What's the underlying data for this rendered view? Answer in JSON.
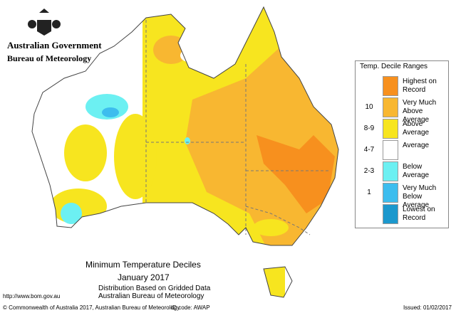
{
  "header": {
    "agency": "Australian Government",
    "bureau": "Bureau of Meteorology"
  },
  "legend": {
    "title": "Temp. Decile Ranges",
    "entries": [
      {
        "decile": "",
        "label": "Highest on Record",
        "color": "#f7901e"
      },
      {
        "decile": "10",
        "label": "Very Much Above Average",
        "color": "#f8b731"
      },
      {
        "decile": "8-9",
        "label": "Above Average",
        "color": "#f7e51f"
      },
      {
        "decile": "4-7",
        "label": "Average",
        "color": "#ffffff"
      },
      {
        "decile": "2-3",
        "label": "Below Average",
        "color": "#6cf0f2"
      },
      {
        "decile": "1",
        "label": "Very Much Below Average",
        "color": "#3dbdee"
      },
      {
        "decile": "",
        "label": "Lowest on Record",
        "color": "#1c98cd"
      }
    ]
  },
  "caption": {
    "title": "Minimum Temperature Deciles",
    "period": "January 2017",
    "line1": "Distribution Based on Gridded Data",
    "line2": "Australian Bureau of Meteorology"
  },
  "footer": {
    "url": "http://www.bom.gov.au",
    "copyright": "© Commonwealth of Australia 2017, Australian Bureau of Meteorology",
    "id_code": "ID code: AWAP",
    "issued": "Issued: 01/02/2017"
  }
}
